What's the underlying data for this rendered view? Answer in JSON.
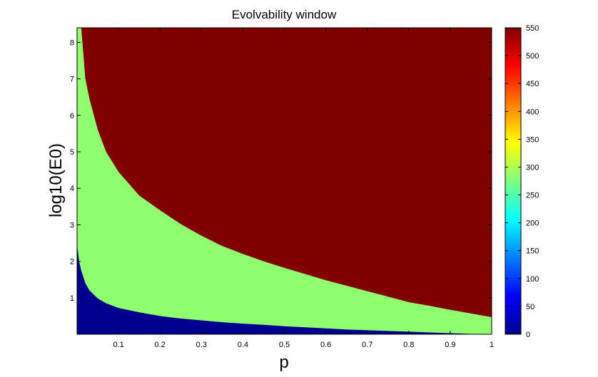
{
  "chart_data": {
    "type": "heatmap",
    "title": "Evolvability window",
    "xlabel": "p",
    "ylabel": "log10(E0)",
    "xlim": [
      0,
      1
    ],
    "ylim": [
      0,
      8.4
    ],
    "x_ticks": [
      0.1,
      0.2,
      0.3,
      0.4,
      0.5,
      0.6,
      0.7,
      0.8,
      0.9,
      1
    ],
    "x_tick_labels": [
      "0.1",
      "0.2",
      "0.3",
      "0.4",
      "0.5",
      "0.6",
      "0.7",
      "0.8",
      "0.9",
      "1"
    ],
    "y_ticks": [
      1,
      2,
      3,
      4,
      5,
      6,
      7,
      8
    ],
    "y_tick_labels": [
      "1",
      "2",
      "3",
      "4",
      "5",
      "6",
      "7",
      "8"
    ],
    "colorbar": {
      "colormap": "jet",
      "range": [
        0,
        550
      ],
      "ticks": [
        0,
        50,
        100,
        150,
        200,
        250,
        300,
        350,
        400,
        450,
        500,
        550
      ],
      "tick_labels": [
        "0",
        "50",
        "100",
        "150",
        "200",
        "250",
        "300",
        "350",
        "400",
        "450",
        "500",
        "550"
      ]
    },
    "regions": [
      {
        "level": 550,
        "color": "#800000",
        "description_from_image": "upper region (max value)"
      },
      {
        "level": 270,
        "color": "#8fff70",
        "description_from_image": "middle band"
      },
      {
        "level": 0,
        "color": "#00008f",
        "description_from_image": "lower region (min value)"
      }
    ],
    "upper_boundary": {
      "x": [
        0.01,
        0.02,
        0.03,
        0.05,
        0.07,
        0.1,
        0.15,
        0.2,
        0.25,
        0.3,
        0.35,
        0.4,
        0.45,
        0.5,
        0.55,
        0.6,
        0.65,
        0.7,
        0.75,
        0.8,
        0.85,
        0.9,
        0.95,
        1.0
      ],
      "y": [
        8.4,
        7.0,
        6.45,
        5.6,
        5.0,
        4.45,
        3.8,
        3.4,
        3.02,
        2.7,
        2.42,
        2.2,
        2.0,
        1.82,
        1.65,
        1.48,
        1.33,
        1.18,
        1.03,
        0.88,
        0.78,
        0.67,
        0.57,
        0.47
      ]
    },
    "lower_boundary": {
      "x": [
        0.0,
        0.005,
        0.01,
        0.02,
        0.03,
        0.05,
        0.07,
        0.1,
        0.15,
        0.2,
        0.25,
        0.3,
        0.35,
        0.4,
        0.45,
        0.5,
        0.55,
        0.6,
        0.65,
        0.7,
        0.75,
        0.8,
        0.85,
        0.9,
        0.95,
        1.0
      ],
      "y": [
        2.45,
        2.0,
        1.75,
        1.4,
        1.2,
        0.98,
        0.85,
        0.72,
        0.6,
        0.5,
        0.43,
        0.38,
        0.33,
        0.29,
        0.26,
        0.22,
        0.19,
        0.16,
        0.13,
        0.11,
        0.09,
        0.07,
        0.05,
        0.03,
        0.01,
        0.0
      ]
    }
  }
}
